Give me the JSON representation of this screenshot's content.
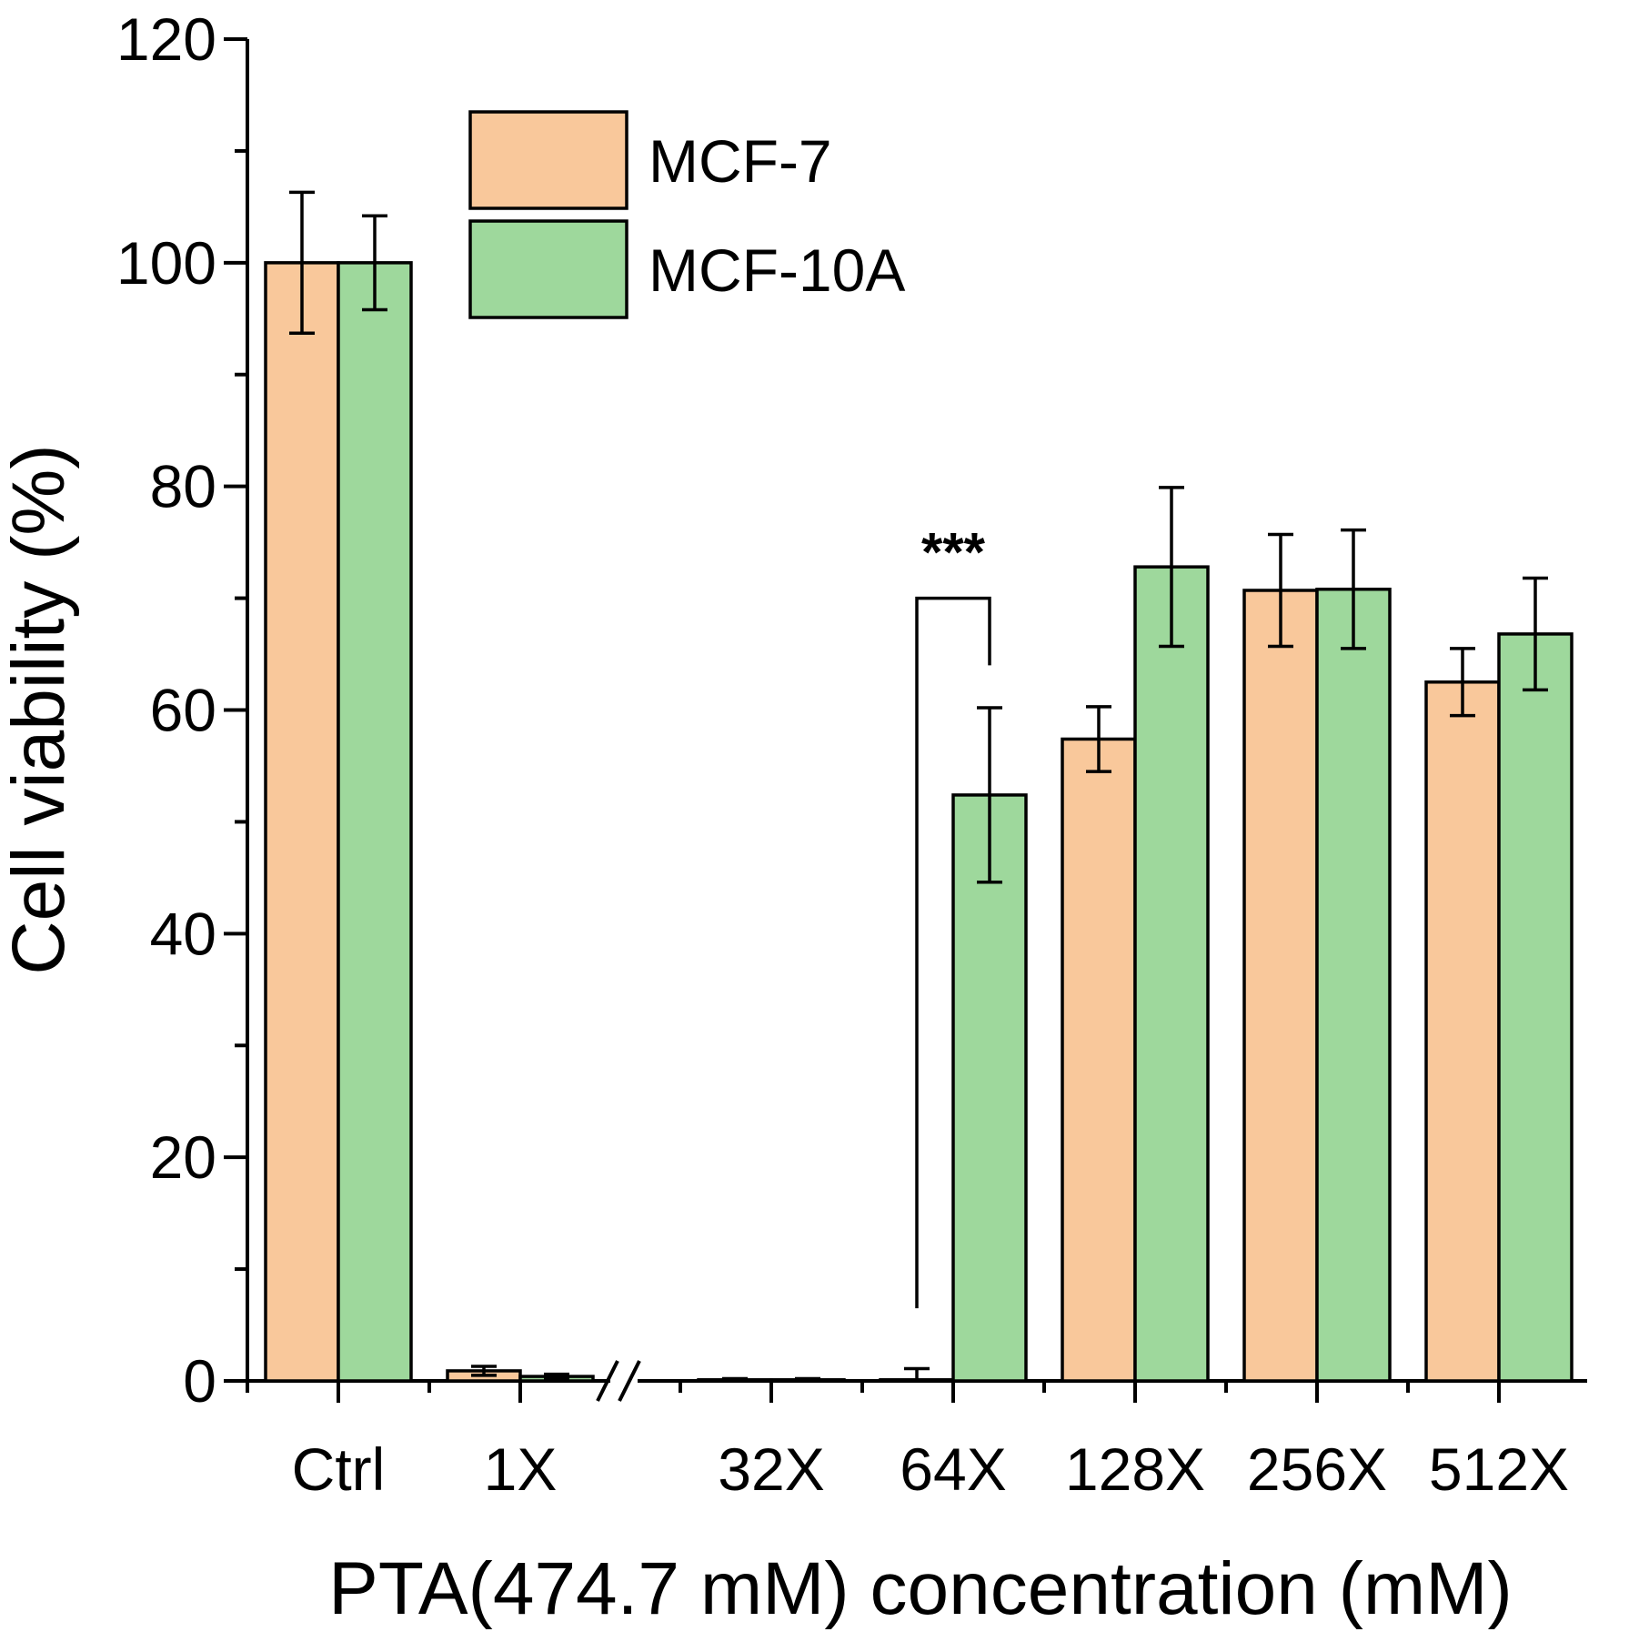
{
  "chart_data": {
    "type": "bar",
    "categories": [
      "Ctrl",
      "1X",
      "32X",
      "64X",
      "128X",
      "256X",
      "512X"
    ],
    "series": [
      {
        "name": "MCF-7",
        "color": "#F9C89B",
        "values": [
          100,
          0.9,
          0.1,
          0.1,
          57.4,
          70.7,
          62.5
        ],
        "errors": [
          6.3,
          0.4,
          0.1,
          1.0,
          2.9,
          5.0,
          3.0
        ]
      },
      {
        "name": "MCF-10A",
        "color": "#9ED89C",
        "values": [
          100,
          0.4,
          0.1,
          52.4,
          72.8,
          70.8,
          66.8
        ],
        "errors": [
          4.2,
          0.2,
          0.1,
          7.8,
          7.1,
          5.3,
          5.0
        ]
      }
    ],
    "xlabel": "PTA(474.7 mM) concentration (mM)",
    "ylabel": "Cell viability (%)",
    "ylim": [
      0,
      120
    ],
    "yticks": [
      "0",
      "20",
      "40",
      "60",
      "80",
      "100",
      "120"
    ],
    "axis_break": "//",
    "annotation": "***",
    "legend_position": "top-center",
    "grid": false
  }
}
